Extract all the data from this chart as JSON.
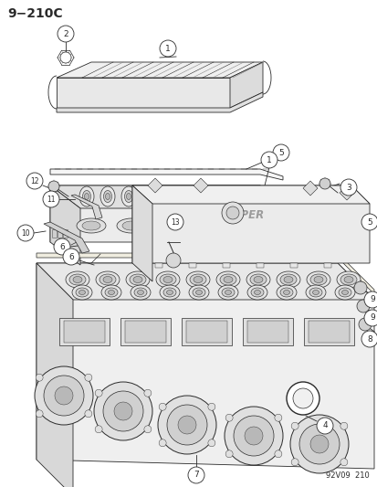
{
  "title": "9−210C",
  "background_color": "#ffffff",
  "line_color": "#2a2a2a",
  "footer_text": "92V09  210",
  "title_fontsize": 10,
  "footer_fontsize": 6
}
